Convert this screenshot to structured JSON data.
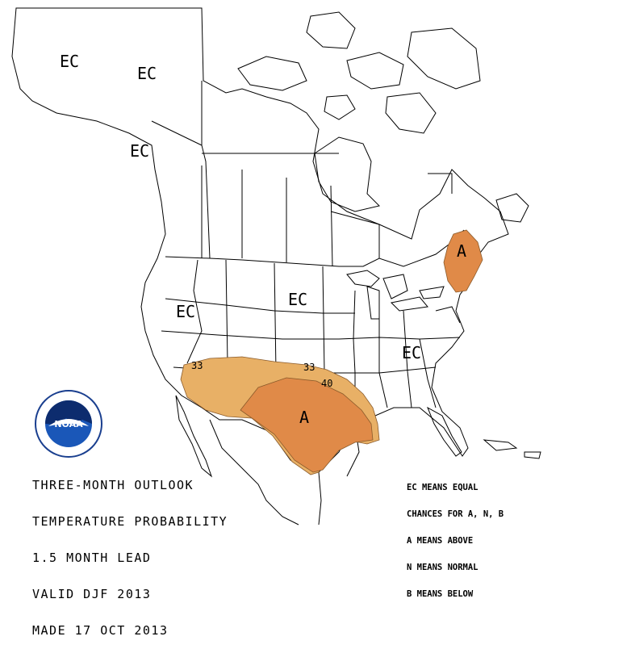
{
  "title_lines": [
    "THREE-MONTH OUTLOOK",
    "TEMPERATURE PROBABILITY",
    "1.5 MONTH LEAD",
    "VALID DJF 2013",
    "MADE 17 OCT 2013"
  ],
  "legend_lines": [
    "EC MEANS EQUAL",
    "CHANCES FOR A, N, B",
    "A MEANS ABOVE",
    "N MEANS NORMAL",
    "B MEANS BELOW"
  ],
  "map_labels": {
    "ec_alaska_west": "EC",
    "ec_alaska_east": "EC",
    "ec_canada_coast": "EC",
    "ec_west_us": "EC",
    "ec_central_us": "EC",
    "ec_east_us": "EC",
    "a_texas": "A",
    "a_new_england": "A",
    "contour_33_west": "33",
    "contour_33_central": "33",
    "contour_40": "40"
  },
  "colors": {
    "prob_33_40": "#e8b066",
    "prob_40_50": "#e08a48",
    "boundary": "#000000",
    "contour": "#8a5a2a"
  },
  "logo": {
    "name": "noaa-logo",
    "center_text": "NOAA"
  }
}
